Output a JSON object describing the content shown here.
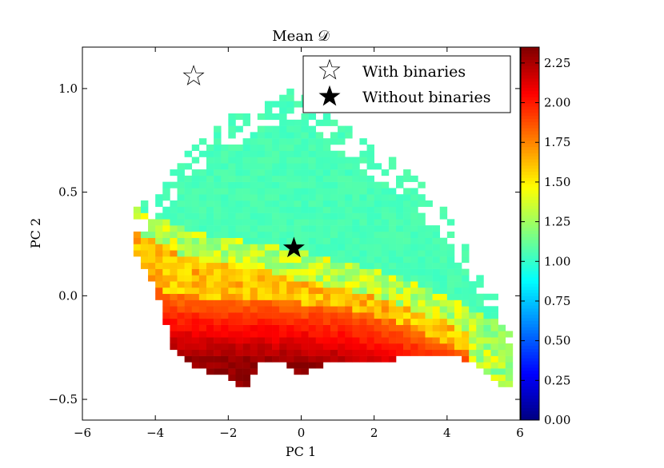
{
  "chart_data": {
    "type": "heatmap",
    "title": "Mean 𝒟",
    "xlabel": "PC 1",
    "ylabel": "PC 2",
    "xlim": [
      -6,
      6
    ],
    "ylim": [
      -0.6,
      1.2
    ],
    "x_ticks": [
      -6,
      -4,
      -2,
      0,
      2,
      4,
      6
    ],
    "x_tick_labels": [
      "−6",
      "−4",
      "−2",
      "0",
      "2",
      "4",
      "6"
    ],
    "y_ticks": [
      -0.5,
      0.0,
      0.5,
      1.0
    ],
    "y_tick_labels": [
      "−0.5",
      "0.0",
      "0.5",
      "1.0"
    ],
    "colorbar": {
      "min": 0.0,
      "max": 2.35,
      "colormap": "jet",
      "ticks": [
        0.0,
        0.25,
        0.5,
        0.75,
        1.0,
        1.25,
        1.5,
        1.75,
        2.0,
        2.25
      ],
      "tick_labels": [
        "0.00",
        "0.25",
        "0.50",
        "0.75",
        "1.00",
        "1.25",
        "1.50",
        "1.75",
        "2.00",
        "2.25"
      ]
    },
    "grid": false,
    "cell_size": [
      0.2,
      0.03
    ],
    "distribution_description": "2D histogram of mean D in PC1/PC2 space; upper region ~1.0 (cyan), middle ~1.5 (yellow), lower region ~2.0-2.35 (red)",
    "markers": [
      {
        "name": "With binaries",
        "x": -2.95,
        "y": 1.06,
        "style": "open-star"
      },
      {
        "name": "Without binaries",
        "x": -0.2,
        "y": 0.23,
        "style": "filled-star"
      }
    ],
    "legend": {
      "location": "top-right",
      "entries": [
        "With binaries",
        "Without binaries"
      ]
    }
  }
}
